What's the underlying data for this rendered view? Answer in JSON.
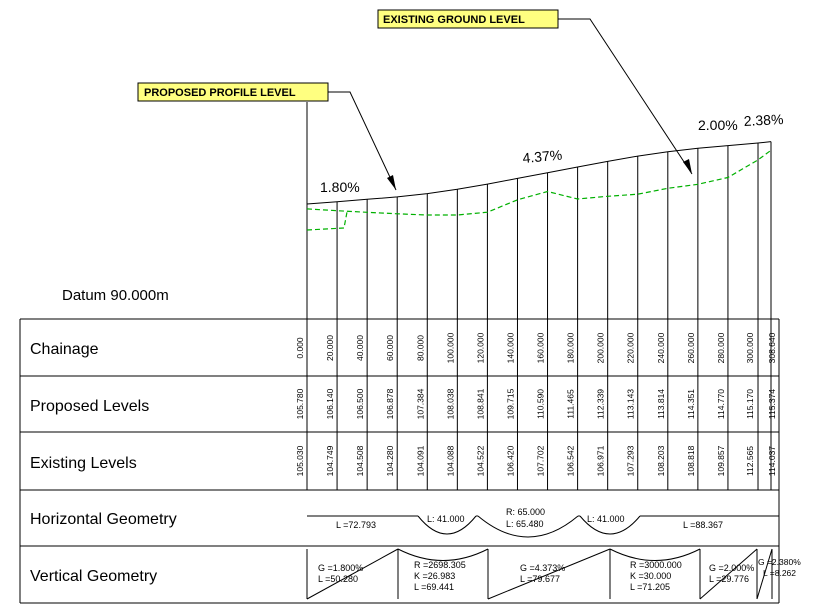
{
  "callouts": {
    "existing": "EXISTING GROUND LEVEL",
    "proposed": "PROPOSED PROFILE LEVEL"
  },
  "datum": "Datum 90.000m",
  "grades": [
    "1.80%",
    "4.37%",
    "2.00%",
    "2.38%"
  ],
  "rows": {
    "chainage": "Chainage",
    "proposed": "Proposed Levels",
    "existing": "Existing Levels",
    "horizontal": "Horizontal Geometry",
    "vertical": "Vertical Geometry"
  },
  "stations": [
    {
      "chainage": "0.000",
      "proposed": "105.780",
      "existing": "105.030"
    },
    {
      "chainage": "20.000",
      "proposed": "106.140",
      "existing": "104.749"
    },
    {
      "chainage": "40.000",
      "proposed": "106.500",
      "existing": "104.508"
    },
    {
      "chainage": "60.000",
      "proposed": "106.878",
      "existing": "104.280"
    },
    {
      "chainage": "80.000",
      "proposed": "107.384",
      "existing": "104.091"
    },
    {
      "chainage": "100.000",
      "proposed": "108.038",
      "existing": "104.088"
    },
    {
      "chainage": "120.000",
      "proposed": "108.841",
      "existing": "104.522"
    },
    {
      "chainage": "140.000",
      "proposed": "109.715",
      "existing": "106.420"
    },
    {
      "chainage": "160.000",
      "proposed": "110.590",
      "existing": "107.702"
    },
    {
      "chainage": "180.000",
      "proposed": "111.465",
      "existing": "106.542"
    },
    {
      "chainage": "200.000",
      "proposed": "112.339",
      "existing": "106.971"
    },
    {
      "chainage": "220.000",
      "proposed": "113.143",
      "existing": "107.293"
    },
    {
      "chainage": "240.000",
      "proposed": "113.814",
      "existing": "108.203"
    },
    {
      "chainage": "260.000",
      "proposed": "114.351",
      "existing": "108.818"
    },
    {
      "chainage": "280.000",
      "proposed": "114.770",
      "existing": "109.857"
    },
    {
      "chainage": "300.000",
      "proposed": "115.170",
      "existing": "112.565"
    },
    {
      "chainage": "308.640",
      "proposed": "115.374",
      "existing": "114.037"
    }
  ],
  "horizontal_geometry": {
    "tangent1": "L =72.793",
    "curve1": "L: 41.000",
    "curve2_r": "R: 65.000",
    "curve2_l": "L: 65.480",
    "curve3": "L: 41.000",
    "tangent2": "L =88.367"
  },
  "vertical_geometry": {
    "g1": "G =1.800%",
    "l1": "L =50.280",
    "r1": "R =2698.305",
    "k1": "K =26.983",
    "vl1": "L =69.441",
    "g2": "G =4.373%",
    "l2": "L =79.677",
    "r2": "R =3000.000",
    "k2": "K =30.000",
    "vl2": "L =71.205",
    "g3": "G =2.000%",
    "l3": "L =29.776",
    "g4": "G =2.380%",
    "l4": "L =8.262"
  },
  "colors": {
    "existing_line": "#00b000",
    "callout_fill": "#ffff80",
    "line": "#000000"
  },
  "chart_data": {
    "type": "line",
    "x": [
      0,
      20,
      40,
      60,
      80,
      100,
      120,
      140,
      160,
      180,
      200,
      220,
      240,
      260,
      280,
      300,
      308.64
    ],
    "series": [
      {
        "name": "PROPOSED PROFILE LEVEL",
        "values": [
          105.78,
          106.14,
          106.5,
          106.878,
          107.384,
          108.038,
          108.841,
          109.715,
          110.59,
          111.465,
          112.339,
          113.143,
          113.814,
          114.351,
          114.77,
          115.17,
          115.374
        ]
      },
      {
        "name": "EXISTING GROUND LEVEL",
        "values": [
          105.03,
          104.749,
          104.508,
          104.28,
          104.091,
          104.088,
          104.522,
          106.42,
          107.702,
          106.542,
          106.971,
          107.293,
          108.203,
          108.818,
          109.857,
          112.565,
          114.037
        ]
      }
    ],
    "datum": 90.0
  }
}
